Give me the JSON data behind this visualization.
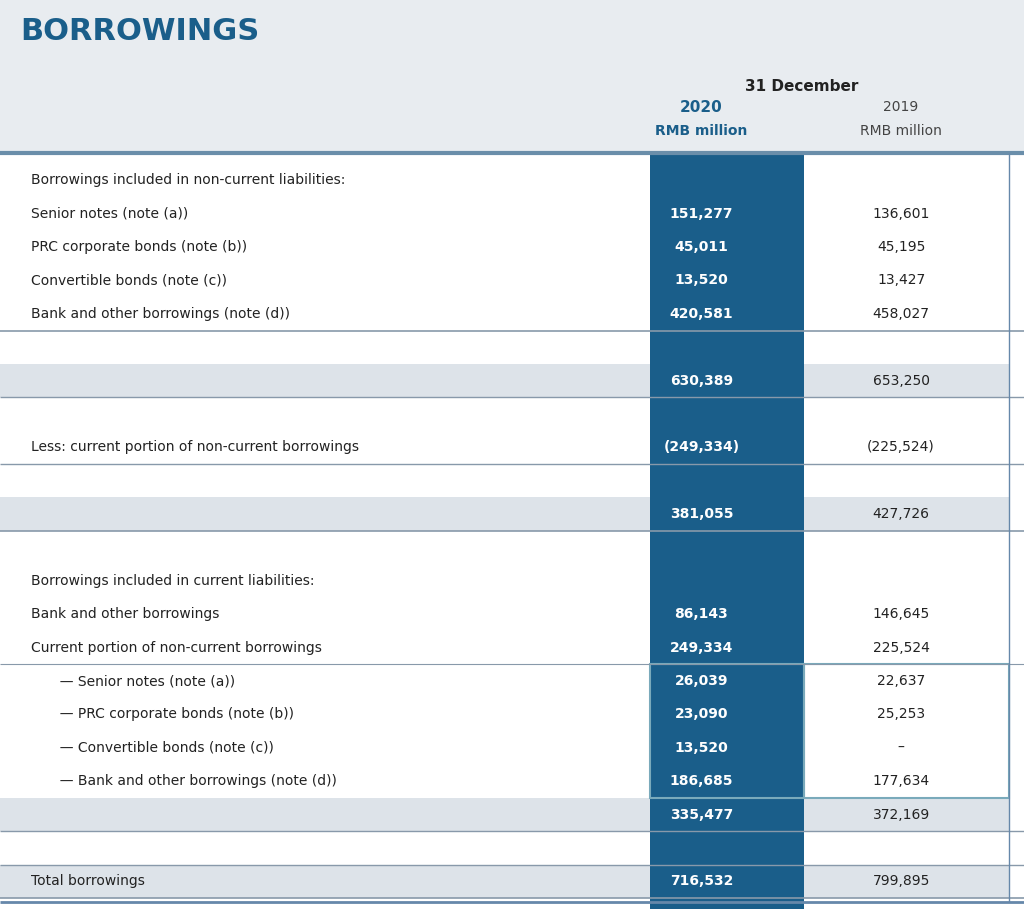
{
  "title": "BORROWINGS",
  "header_date": "31 December",
  "col1_header": "2020",
  "col2_header": "2019",
  "col1_subheader": "RMB million",
  "col2_subheader": "RMB million",
  "title_color": "#1a5e8a",
  "header_col1_color": "#1a5e8a",
  "highlight_bg": "#1a5e8a",
  "highlight_text": "#ffffff",
  "bg_color": "#e8ecf0",
  "white": "#ffffff",
  "rows": [
    {
      "label": "Borrowings included in non-current liabilities:",
      "val1": "",
      "val2": "",
      "type": "section_header"
    },
    {
      "label": "Senior notes (note (a))",
      "val1": "151,277",
      "val2": "136,601",
      "type": "data"
    },
    {
      "label": "PRC corporate bonds (note (b))",
      "val1": "45,011",
      "val2": "45,195",
      "type": "data"
    },
    {
      "label": "Convertible bonds (note (c))",
      "val1": "13,520",
      "val2": "13,427",
      "type": "data"
    },
    {
      "label": "Bank and other borrowings (note (d))",
      "val1": "420,581",
      "val2": "458,027",
      "type": "data"
    },
    {
      "label": "",
      "val1": "",
      "val2": "",
      "type": "spacer"
    },
    {
      "label": "",
      "val1": "630,389",
      "val2": "653,250",
      "type": "subtotal"
    },
    {
      "label": "",
      "val1": "",
      "val2": "",
      "type": "spacer"
    },
    {
      "label": "Less: current portion of non-current borrowings",
      "val1": "(249,334)",
      "val2": "(225,524)",
      "type": "data"
    },
    {
      "label": "",
      "val1": "",
      "val2": "",
      "type": "spacer"
    },
    {
      "label": "",
      "val1": "381,055",
      "val2": "427,726",
      "type": "subtotal"
    },
    {
      "label": "",
      "val1": "",
      "val2": "",
      "type": "spacer"
    },
    {
      "label": "Borrowings included in current liabilities:",
      "val1": "",
      "val2": "",
      "type": "section_header"
    },
    {
      "label": "Bank and other borrowings",
      "val1": "86,143",
      "val2": "146,645",
      "type": "data"
    },
    {
      "label": "Current portion of non-current borrowings",
      "val1": "249,334",
      "val2": "225,524",
      "type": "data"
    },
    {
      "label": "  — Senior notes (note (a))",
      "val1": "26,039",
      "val2": "22,637",
      "type": "data_indent"
    },
    {
      "label": "  — PRC corporate bonds (note (b))",
      "val1": "23,090",
      "val2": "25,253",
      "type": "data_indent"
    },
    {
      "label": "  — Convertible bonds (note (c))",
      "val1": "13,520",
      "val2": "–",
      "type": "data_indent"
    },
    {
      "label": "  — Bank and other borrowings (note (d))",
      "val1": "186,685",
      "val2": "177,634",
      "type": "data_indent"
    },
    {
      "label": "",
      "val1": "335,477",
      "val2": "372,169",
      "type": "subtotal"
    },
    {
      "label": "",
      "val1": "",
      "val2": "",
      "type": "spacer"
    },
    {
      "label": "Total borrowings",
      "val1": "716,532",
      "val2": "799,895",
      "type": "total"
    }
  ]
}
